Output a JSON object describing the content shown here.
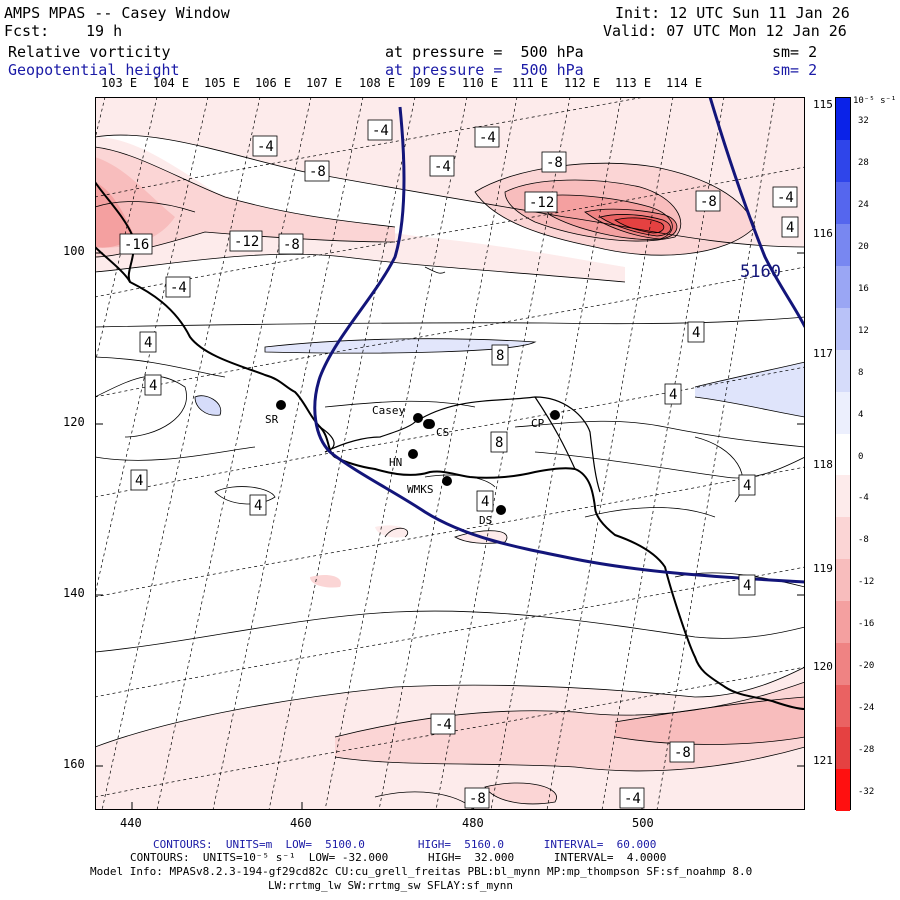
{
  "header": {
    "model_line": "AMPS MPAS -- Casey Window",
    "fcst_label": "Fcst:",
    "fcst_value": "19 h",
    "init_line": "Init: 12 UTC Sun 11 Jan 26",
    "valid_line": "Valid: 07 UTC Mon 12 Jan 26",
    "field1": {
      "name": "Relative vorticity",
      "level": "at pressure =  500 hPa",
      "smooth": "sm= 2"
    },
    "field2": {
      "name": "Geopotential height",
      "level": "at pressure =  500 hPa",
      "smooth": "sm= 2"
    }
  },
  "longitude_labels": [
    "103 E",
    "104 E",
    "105 E",
    "106 E",
    "107 E",
    "108 E",
    "109 E",
    "110 E",
    "111 E",
    "112 E",
    "113 E",
    "114 E"
  ],
  "right_lon_labels": [
    "115 E",
    "116 E",
    "117 E",
    "118 E",
    "119 E",
    "120 E",
    "121 E"
  ],
  "y_ticks": [
    "100",
    "120",
    "140",
    "160"
  ],
  "x_ticks": [
    "440",
    "460",
    "480",
    "500"
  ],
  "stations": [
    {
      "id": "SR",
      "label": "SR"
    },
    {
      "id": "Casey",
      "label": "Casey"
    },
    {
      "id": "CS",
      "label": "CS"
    },
    {
      "id": "HN",
      "label": "HN"
    },
    {
      "id": "CP",
      "label": "CP"
    },
    {
      "id": "WMKS",
      "label": "WMKS"
    },
    {
      "id": "DS",
      "label": "DS"
    }
  ],
  "contour_labels": [
    "-4",
    "-4",
    "-4",
    "-8",
    "-4",
    "-8",
    "-12",
    "-8",
    "-4",
    "-16",
    "-12",
    "-8",
    "4",
    "-4",
    "4",
    "8",
    "4",
    "4",
    "8",
    "4",
    "4",
    "4",
    "4",
    "4",
    "4",
    "-4",
    "-8",
    "-8",
    "-4"
  ],
  "height_label": "5160",
  "colorbar": {
    "unit": "10⁻⁵ s⁻¹",
    "labels": [
      "32",
      "28",
      "24",
      "20",
      "16",
      "12",
      "8",
      "4",
      "0",
      "-4",
      "-8",
      "-12",
      "-16",
      "-20",
      "-24",
      "-28",
      "-32"
    ],
    "colors": [
      "#0a22e8",
      "#2f45ea",
      "#5566ee",
      "#7887f1",
      "#9aa6f4",
      "#b9c2f8",
      "#d6dcfa",
      "#eceffd",
      "#ffffff",
      "#fdebeb",
      "#fbd5d5",
      "#f8bdbd",
      "#f4a0a0",
      "#ef8383",
      "#ea6262",
      "#e54141",
      "#ff1010"
    ]
  },
  "footer": {
    "contours_height": "CONTOURS:  UNITS=m  LOW=  5100.0        HIGH=  5160.0      INTERVAL=  60.000",
    "contours_vort": "CONTOURS:  UNITS=10⁻⁵ s⁻¹  LOW= -32.000      HIGH=  32.000      INTERVAL=  4.0000",
    "model_info": "Model Info: MPASv8.2.3-194-gf29cd82c CU:cu_grell_freitas PBL:bl_mynn MP:mp_thompson SF:sf_noahmp 8.0",
    "model_info2": "LW:rrtmg_lw SW:rrtmg_sw SFLAY:sf_mynn"
  }
}
